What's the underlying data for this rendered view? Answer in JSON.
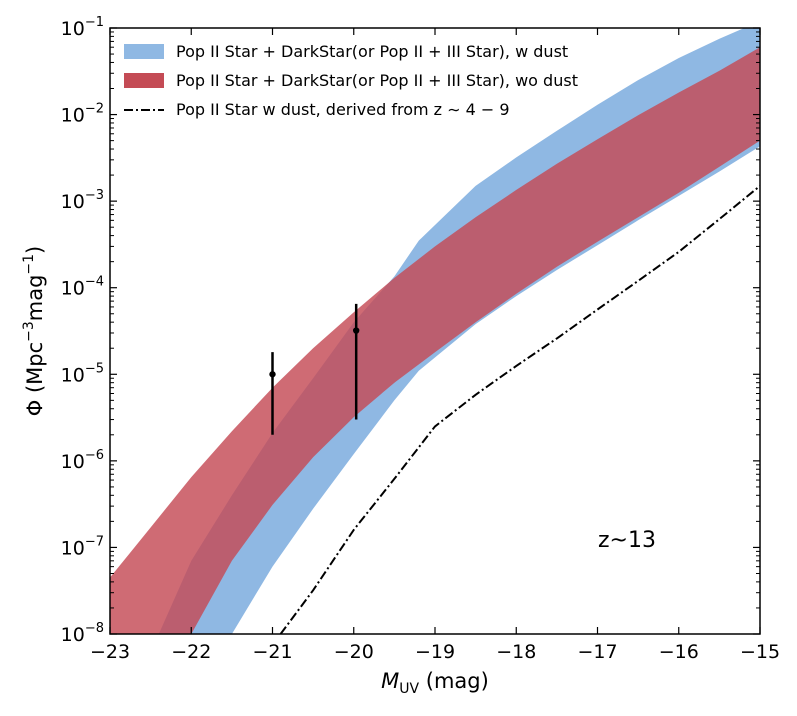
{
  "chart_data": {
    "type": "area",
    "xlabel": {
      "main": "M",
      "sub": "UV",
      "rest": " (mag)"
    },
    "ylabel": {
      "pre": "Φ (Mpc",
      "sup1": "−3",
      "mid": "mag",
      "sup2": "−1",
      "post": ")"
    },
    "xlim": [
      -23,
      -15
    ],
    "ylim": [
      1e-08,
      0.1
    ],
    "yscale": "log",
    "grid": false,
    "legend_position": "top-left",
    "x_ticks": [
      {
        "value": -23,
        "label": "−23"
      },
      {
        "value": -22,
        "label": "−22"
      },
      {
        "value": -21,
        "label": "−21"
      },
      {
        "value": -20,
        "label": "−20"
      },
      {
        "value": -19,
        "label": "−19"
      },
      {
        "value": -18,
        "label": "−18"
      },
      {
        "value": -17,
        "label": "−17"
      },
      {
        "value": -16,
        "label": "−16"
      },
      {
        "value": -15,
        "label": "−15"
      }
    ],
    "y_ticks": [
      {
        "exp": -8,
        "base": "10",
        "sup": "−8"
      },
      {
        "exp": -7,
        "base": "10",
        "sup": "−7"
      },
      {
        "exp": -6,
        "base": "10",
        "sup": "−6"
      },
      {
        "exp": -5,
        "base": "10",
        "sup": "−5"
      },
      {
        "exp": -4,
        "base": "10",
        "sup": "−4"
      },
      {
        "exp": -3,
        "base": "10",
        "sup": "−3"
      },
      {
        "exp": -2,
        "base": "10",
        "sup": "−2"
      },
      {
        "exp": -1,
        "base": "10",
        "sup": "−1"
      }
    ],
    "series": [
      {
        "name": "Pop II Star + DarkStar(or Pop II + III Star), w dust",
        "kind": "band",
        "color": "#8fb8e3",
        "x": [
          -22.4,
          -22.0,
          -21.5,
          -21.0,
          -20.5,
          -20.0,
          -19.5,
          -19.2,
          -18.5,
          -18.0,
          -17.5,
          -17.0,
          -16.5,
          -16.0,
          -15.5,
          -15.0
        ],
        "upper": [
          1e-08,
          7e-08,
          4e-07,
          2.1e-06,
          9e-06,
          4e-05,
          0.000135,
          0.00035,
          0.0015,
          0.0032,
          0.0065,
          0.013,
          0.025,
          0.045,
          0.075,
          0.12
        ],
        "lower": [
          1e-08,
          1e-08,
          1e-08,
          6e-08,
          2.8e-07,
          1.2e-06,
          5e-06,
          1.1e-05,
          3.8e-05,
          8e-05,
          0.00016,
          0.00031,
          0.0006,
          0.00115,
          0.0022,
          0.0043
        ]
      },
      {
        "name": "Pop II Star + DarkStar(or Pop II + III Star), wo dust",
        "kind": "band",
        "color": "#c44b55",
        "x": [
          -23.0,
          -22.5,
          -22.0,
          -21.5,
          -21.0,
          -20.5,
          -20.0,
          -19.5,
          -19.0,
          -18.5,
          -18.0,
          -17.5,
          -17.0,
          -16.5,
          -16.0,
          -15.5,
          -15.0
        ],
        "upper": [
          4.5e-08,
          1.7e-07,
          6.5e-07,
          2.2e-06,
          7e-06,
          2e-05,
          5.2e-05,
          0.00013,
          0.0003,
          0.00065,
          0.00135,
          0.0027,
          0.0052,
          0.0098,
          0.018,
          0.032,
          0.06
        ],
        "lower": [
          1e-08,
          1e-08,
          1e-08,
          7e-08,
          3.1e-07,
          1.1e-06,
          3.2e-06,
          8e-06,
          1.8e-05,
          4e-05,
          8.5e-05,
          0.000175,
          0.00034,
          0.00065,
          0.00125,
          0.0025,
          0.005
        ]
      },
      {
        "name": "Pop II Star w dust, derived from z ∼ 4 − 9",
        "kind": "line",
        "color": "#000000",
        "x": [
          -20.9,
          -20.5,
          -20.0,
          -19.5,
          -19.0,
          -18.5,
          -18.0,
          -17.5,
          -17.0,
          -16.5,
          -16.0,
          -15.5,
          -15.0
        ],
        "y": [
          1e-08,
          3.2e-08,
          1.6e-07,
          6.2e-07,
          2.5e-06,
          5.8e-06,
          1.25e-05,
          2.6e-05,
          5.6e-05,
          0.00012,
          0.00026,
          0.00062,
          0.0015
        ]
      }
    ],
    "data_points": [
      {
        "x": -21.0,
        "y": 1e-05,
        "yerr_low": 2e-06,
        "yerr_high": 1.8e-05
      },
      {
        "x": -19.97,
        "y": 3.2e-05,
        "yerr_low": 3e-06,
        "yerr_high": 6.5e-05
      }
    ],
    "annotation": "z~13"
  }
}
